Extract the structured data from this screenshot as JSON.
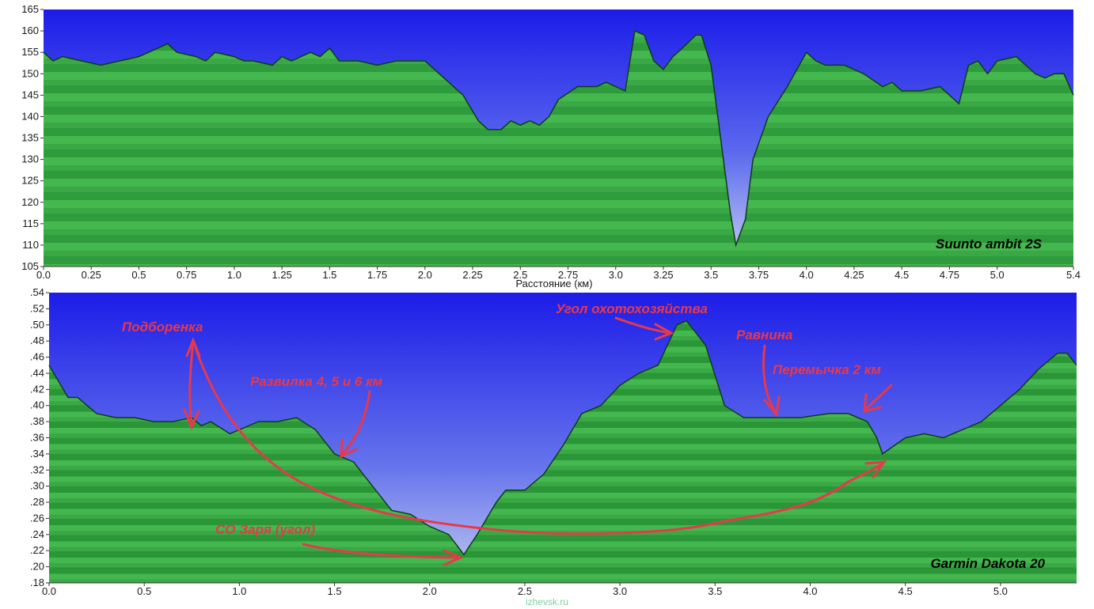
{
  "chart_data": [
    {
      "type": "area",
      "series_label": "Suunto ambit 2S",
      "xlabel": "Расстояние  (км)",
      "ylabel": "",
      "xlim": [
        0,
        5.4
      ],
      "ylim": [
        105,
        165
      ],
      "x_ticks": [
        "0.0",
        "0.25",
        "0.5",
        "0.75",
        "1.0",
        "1.25",
        "1.5",
        "1.75",
        "2.0",
        "2.25",
        "2.5",
        "2.75",
        "3.0",
        "3.25",
        "3.5",
        "3.75",
        "4.0",
        "4.25",
        "4.5",
        "4.75",
        "5.0",
        "5.4"
      ],
      "y_ticks": [
        "105",
        "110",
        "115",
        "120",
        "125",
        "130",
        "135",
        "140",
        "145",
        "150",
        "155",
        "160",
        "165"
      ],
      "points": [
        [
          0,
          155
        ],
        [
          0.05,
          153
        ],
        [
          0.1,
          154
        ],
        [
          0.2,
          153
        ],
        [
          0.3,
          152
        ],
        [
          0.4,
          153
        ],
        [
          0.5,
          154
        ],
        [
          0.6,
          156
        ],
        [
          0.65,
          157
        ],
        [
          0.7,
          155
        ],
        [
          0.8,
          154
        ],
        [
          0.85,
          153
        ],
        [
          0.9,
          155
        ],
        [
          1.0,
          154
        ],
        [
          1.05,
          153
        ],
        [
          1.1,
          153
        ],
        [
          1.2,
          152
        ],
        [
          1.25,
          154
        ],
        [
          1.3,
          153
        ],
        [
          1.4,
          155
        ],
        [
          1.45,
          154
        ],
        [
          1.5,
          156
        ],
        [
          1.55,
          153
        ],
        [
          1.65,
          153
        ],
        [
          1.75,
          152
        ],
        [
          1.85,
          153
        ],
        [
          2.0,
          153
        ],
        [
          2.1,
          149
        ],
        [
          2.2,
          145
        ],
        [
          2.28,
          139
        ],
        [
          2.33,
          137
        ],
        [
          2.4,
          137
        ],
        [
          2.45,
          139
        ],
        [
          2.5,
          138
        ],
        [
          2.55,
          139
        ],
        [
          2.6,
          138
        ],
        [
          2.65,
          140
        ],
        [
          2.7,
          144
        ],
        [
          2.8,
          147
        ],
        [
          2.9,
          147
        ],
        [
          2.95,
          148
        ],
        [
          3.0,
          147
        ],
        [
          3.05,
          146
        ],
        [
          3.1,
          160
        ],
        [
          3.15,
          159
        ],
        [
          3.2,
          153
        ],
        [
          3.25,
          151
        ],
        [
          3.3,
          154
        ],
        [
          3.35,
          156
        ],
        [
          3.42,
          159
        ],
        [
          3.45,
          159
        ],
        [
          3.5,
          152
        ],
        [
          3.55,
          135
        ],
        [
          3.6,
          118
        ],
        [
          3.63,
          110
        ],
        [
          3.68,
          116
        ],
        [
          3.72,
          130
        ],
        [
          3.8,
          140
        ],
        [
          3.9,
          147
        ],
        [
          4.0,
          155
        ],
        [
          4.05,
          153
        ],
        [
          4.1,
          152
        ],
        [
          4.2,
          152
        ],
        [
          4.3,
          150
        ],
        [
          4.4,
          147
        ],
        [
          4.45,
          148
        ],
        [
          4.5,
          146
        ],
        [
          4.6,
          146
        ],
        [
          4.7,
          147
        ],
        [
          4.8,
          143
        ],
        [
          4.85,
          152
        ],
        [
          4.9,
          153
        ],
        [
          4.95,
          150
        ],
        [
          5.0,
          153
        ],
        [
          5.1,
          154
        ],
        [
          5.2,
          150
        ],
        [
          5.25,
          149
        ],
        [
          5.3,
          150
        ],
        [
          5.35,
          150
        ],
        [
          5.4,
          145
        ]
      ]
    },
    {
      "type": "area",
      "series_label": "Garmin Dakota 20",
      "xlabel": "",
      "ylabel": "",
      "xlim": [
        0,
        5.4
      ],
      "ylim": [
        118,
        154
      ],
      "x_ticks": [
        "0.0",
        "0.5",
        "1.0",
        "1.5",
        "2.0",
        "2.5",
        "3.0",
        "3.5",
        "4.0",
        "4.5",
        "5.0"
      ],
      "y_ticks": [
        "154",
        "152",
        "150",
        "148",
        "146",
        "144",
        "142",
        "140",
        "138",
        "136",
        "134",
        "132",
        "130",
        "128",
        "126",
        "124",
        "122",
        "120",
        "118"
      ],
      "y_tick_labels": [
        ".54",
        ".52",
        ".50",
        ".48",
        ".46",
        ".44",
        ".42",
        ".40",
        ".38",
        ".36",
        ".34",
        ".32",
        ".30",
        ".28",
        ".26",
        ".24",
        ".22",
        ".20",
        ".18"
      ],
      "points": [
        [
          0,
          145
        ],
        [
          0.1,
          141
        ],
        [
          0.15,
          141
        ],
        [
          0.25,
          139
        ],
        [
          0.35,
          138.5
        ],
        [
          0.45,
          138.5
        ],
        [
          0.55,
          138
        ],
        [
          0.65,
          138
        ],
        [
          0.75,
          138.5
        ],
        [
          0.8,
          137.5
        ],
        [
          0.85,
          138
        ],
        [
          0.95,
          136.5
        ],
        [
          1.0,
          137
        ],
        [
          1.1,
          138
        ],
        [
          1.2,
          138
        ],
        [
          1.3,
          138.5
        ],
        [
          1.4,
          137
        ],
        [
          1.5,
          134
        ],
        [
          1.6,
          133
        ],
        [
          1.7,
          130
        ],
        [
          1.8,
          127
        ],
        [
          1.9,
          126.5
        ],
        [
          2.0,
          125
        ],
        [
          2.1,
          124
        ],
        [
          2.18,
          121.5
        ],
        [
          2.25,
          124
        ],
        [
          2.35,
          128
        ],
        [
          2.4,
          129.5
        ],
        [
          2.5,
          129.5
        ],
        [
          2.6,
          131.5
        ],
        [
          2.7,
          135
        ],
        [
          2.8,
          139
        ],
        [
          2.9,
          140
        ],
        [
          3.0,
          142.5
        ],
        [
          3.1,
          144
        ],
        [
          3.2,
          145
        ],
        [
          3.3,
          150
        ],
        [
          3.35,
          150.5
        ],
        [
          3.45,
          147.5
        ],
        [
          3.55,
          140
        ],
        [
          3.65,
          138.5
        ],
        [
          3.8,
          138.5
        ],
        [
          3.95,
          138.5
        ],
        [
          4.1,
          139
        ],
        [
          4.2,
          139
        ],
        [
          4.3,
          138
        ],
        [
          4.35,
          136
        ],
        [
          4.38,
          134
        ],
        [
          4.5,
          136
        ],
        [
          4.6,
          136.5
        ],
        [
          4.7,
          136
        ],
        [
          4.8,
          137
        ],
        [
          4.9,
          138
        ],
        [
          5.0,
          140
        ],
        [
          5.1,
          142
        ],
        [
          5.2,
          144.5
        ],
        [
          5.3,
          146.5
        ],
        [
          5.35,
          146.5
        ],
        [
          5.4,
          145
        ]
      ],
      "annotations": [
        "Подборенка",
        "Развилка 4, 5 и 6 км",
        "СО Заря (угол)",
        "Угол охотохозяйства",
        "Равнина",
        "Перемычка 2 км"
      ]
    }
  ],
  "footer": "izhevsk.ru",
  "colors": {
    "sky_top": "#1f1fe6",
    "sky_bottom": "#b6c0ee",
    "ground_light": "#3cb24a",
    "ground_dark": "#1f8c33",
    "annotation": "#e8384a"
  }
}
